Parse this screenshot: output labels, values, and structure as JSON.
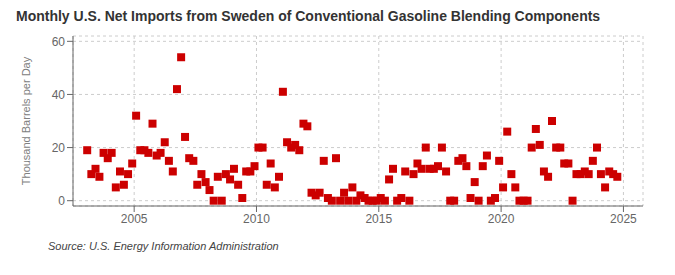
{
  "chart_data": {
    "type": "scatter",
    "title": "Monthly U.S. Net Imports from Sweden of Conventional Gasoline Blending Components",
    "y_label": "Thousand Barrels per Day",
    "annotations": [
      "Source: U.S. Energy Information Administration"
    ],
    "x": [
      2003.08,
      2003.25,
      2003.42,
      2003.58,
      2003.75,
      2003.92,
      2004.08,
      2004.25,
      2004.42,
      2004.58,
      2004.75,
      2004.92,
      2005.08,
      2005.25,
      2005.42,
      2005.58,
      2005.75,
      2005.92,
      2006.08,
      2006.25,
      2006.42,
      2006.58,
      2006.75,
      2006.92,
      2007.08,
      2007.25,
      2007.42,
      2007.58,
      2007.75,
      2007.92,
      2008.08,
      2008.25,
      2008.42,
      2008.58,
      2008.75,
      2008.92,
      2009.08,
      2009.25,
      2009.42,
      2009.58,
      2009.75,
      2009.92,
      2010.08,
      2010.25,
      2010.42,
      2010.58,
      2010.75,
      2010.92,
      2011.08,
      2011.25,
      2011.42,
      2011.58,
      2011.75,
      2011.92,
      2012.08,
      2012.25,
      2012.42,
      2012.58,
      2012.75,
      2012.92,
      2013.08,
      2013.25,
      2013.42,
      2013.58,
      2013.75,
      2013.92,
      2014.08,
      2014.25,
      2014.42,
      2014.58,
      2014.75,
      2014.92,
      2015.08,
      2015.25,
      2015.42,
      2015.58,
      2015.75,
      2015.92,
      2016.08,
      2016.25,
      2016.42,
      2016.58,
      2016.75,
      2016.92,
      2017.08,
      2017.25,
      2017.42,
      2017.58,
      2017.75,
      2017.92,
      2018.08,
      2018.25,
      2018.42,
      2018.58,
      2018.75,
      2018.92,
      2019.08,
      2019.25,
      2019.42,
      2019.58,
      2019.75,
      2019.92,
      2020.08,
      2020.25,
      2020.42,
      2020.58,
      2020.75,
      2020.92,
      2021.08,
      2021.25,
      2021.42,
      2021.58,
      2021.75,
      2021.92,
      2022.08,
      2022.25,
      2022.42,
      2022.58,
      2022.75,
      2022.92,
      2023.08,
      2023.25,
      2023.42,
      2023.58,
      2023.75,
      2023.92,
      2024.08,
      2024.25,
      2024.42,
      2024.58,
      2024.75
    ],
    "values": [
      19,
      10,
      12,
      9,
      18,
      16,
      18,
      5,
      11,
      6,
      10,
      14,
      32,
      19,
      19,
      18,
      29,
      17,
      18,
      22,
      15,
      11,
      42,
      54,
      24,
      16,
      15,
      6,
      10,
      7,
      4,
      0,
      9,
      0,
      10,
      8,
      12,
      6,
      1,
      11,
      11,
      13,
      20,
      20,
      6,
      14,
      5,
      9,
      41,
      22,
      20,
      21,
      19,
      29,
      28,
      3,
      2,
      3,
      15,
      1,
      0,
      16,
      0,
      3,
      0,
      5,
      0,
      2,
      1,
      0,
      0,
      0,
      1,
      0,
      8,
      12,
      0,
      1,
      11,
      0,
      10,
      14,
      12,
      20,
      12,
      12,
      13,
      20,
      11,
      0,
      0,
      15,
      16,
      13,
      1,
      7,
      0,
      13,
      17,
      0,
      1,
      15,
      5,
      26,
      10,
      5,
      0,
      0,
      0,
      20,
      27,
      21,
      11,
      9,
      30,
      20,
      20,
      14,
      14,
      0,
      10,
      10,
      11,
      10,
      15,
      20,
      10,
      5,
      11,
      10,
      9
    ],
    "color": "#CC0000",
    "marker": "square",
    "xlim": [
      2002.5,
      2025.8
    ],
    "ylim": [
      -2,
      62
    ],
    "xticks": [
      2005,
      2010,
      2015,
      2020,
      2025
    ],
    "yticks": [
      0,
      20,
      40,
      60
    ],
    "grid": true
  }
}
